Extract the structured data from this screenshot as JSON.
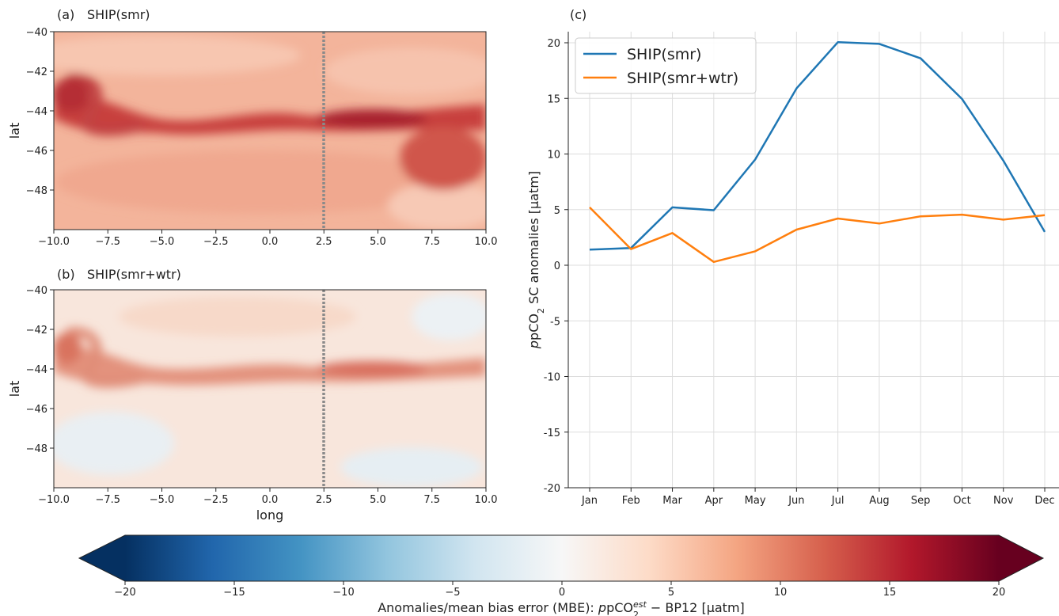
{
  "chart_data": [
    {
      "type": "heatmap",
      "panel_label": "(a)",
      "title": "SHIP(smr)",
      "ylabel": "lat",
      "xlabel": "",
      "xticks": [
        "−10.0",
        "−7.5",
        "−5.0",
        "−2.5",
        "0.0",
        "2.5",
        "5.0",
        "7.5",
        "10.0"
      ],
      "yticks": [
        "−40",
        "−42",
        "−44",
        "−46",
        "−48"
      ],
      "xlim": [
        -10,
        10
      ],
      "ylim": [
        -50,
        -40
      ],
      "vline_x": 2.5,
      "band_anomaly_max": 16,
      "background_anomaly": 7
    },
    {
      "type": "heatmap",
      "panel_label": "(b)",
      "title": "SHIP(smr+wtr)",
      "ylabel": "lat",
      "xlabel": "long",
      "xticks": [
        "−10.0",
        "−7.5",
        "−5.0",
        "−2.5",
        "0.0",
        "2.5",
        "5.0",
        "7.5",
        "10.0"
      ],
      "yticks": [
        "−40",
        "−42",
        "−44",
        "−46",
        "−48"
      ],
      "xlim": [
        -10,
        10
      ],
      "ylim": [
        -50,
        -40
      ],
      "vline_x": 2.5,
      "band_anomaly_max": 9,
      "background_anomaly": 1
    },
    {
      "type": "line",
      "panel_label": "(c)",
      "categories": [
        "Jan",
        "Feb",
        "Mar",
        "Apr",
        "May",
        "Jun",
        "Jul",
        "Aug",
        "Sep",
        "Oct",
        "Nov",
        "Dec"
      ],
      "series": [
        {
          "name": "SHIP(smr)",
          "color": "#1f77b4",
          "values": [
            1.4,
            1.55,
            5.2,
            4.95,
            9.5,
            15.9,
            20.05,
            19.9,
            18.6,
            14.95,
            9.4,
            3.0
          ]
        },
        {
          "name": "SHIP(smr+wtr)",
          "color": "#ff7f0e",
          "values": [
            5.2,
            1.45,
            2.9,
            0.3,
            1.25,
            3.2,
            4.2,
            3.75,
            4.4,
            4.55,
            4.1,
            4.5
          ]
        }
      ],
      "ylabel_main": "pCO",
      "ylabel_sub": "2",
      "ylabel_rest": " SC anomalies [μatm]",
      "yticks": [
        "20",
        "15",
        "10",
        "5",
        "0",
        "-5",
        "-10",
        "-15",
        "-20"
      ],
      "ylim": [
        -20,
        20
      ],
      "grid": true,
      "legend_position": "upper-left"
    }
  ],
  "colorbar": {
    "ticks": [
      "−20",
      "−15",
      "−10",
      "−5",
      "0",
      "5",
      "10",
      "15",
      "20"
    ],
    "range": [
      -20,
      20
    ],
    "label_prefix": "Anomalies/mean bias error (MBE): ",
    "label_pco": "pCO",
    "label_sub": "2",
    "label_sup": "est",
    "label_rest": " − BP12 [μatm]",
    "colors": [
      "#053061",
      "#2166ac",
      "#4393c3",
      "#92c5de",
      "#d1e5f0",
      "#f7f7f7",
      "#fddbc7",
      "#f4a582",
      "#d6604d",
      "#b2182b",
      "#67001f"
    ]
  }
}
